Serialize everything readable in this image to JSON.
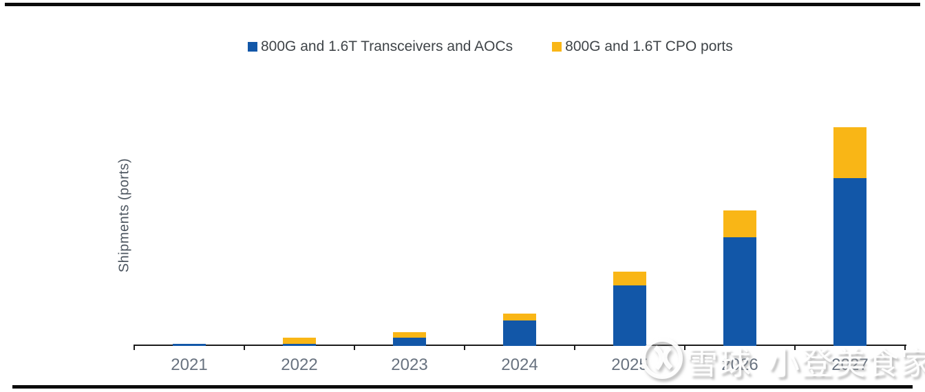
{
  "chart_data": {
    "type": "bar",
    "stacked": true,
    "title": "",
    "xlabel": "",
    "ylabel": "Shipments (ports)",
    "categories": [
      "2021",
      "2022",
      "2023",
      "2024",
      "2025",
      "2026",
      "2027"
    ],
    "series": [
      {
        "name": "800G and 1.6T Transceivers and AOCs",
        "color": "#1257A8",
        "values": [
          3,
          3,
          12,
          37,
          88,
          158,
          244
        ]
      },
      {
        "name": "800G and 1.6T CPO ports",
        "color": "#F9B616",
        "values": [
          0,
          9,
          8,
          10,
          20,
          39,
          74
        ]
      }
    ],
    "value_units": "relative units (y-axis has no numeric tick labels)",
    "ylim": [
      0,
      380
    ],
    "y_tick_labels": [],
    "grid": false,
    "legend_position": "top-center",
    "axis_color": "#1a1a1a"
  },
  "legend": {
    "swatch_shape": "square"
  },
  "watermark": {
    "logo_icon": "xueqiu-snowball-logo",
    "text_primary": "雪球",
    "text_secondary": "小登美食家"
  },
  "frame": {
    "top_rule_color": "#0b0b0b",
    "bottom_rule_color": "#0b0b0b"
  }
}
